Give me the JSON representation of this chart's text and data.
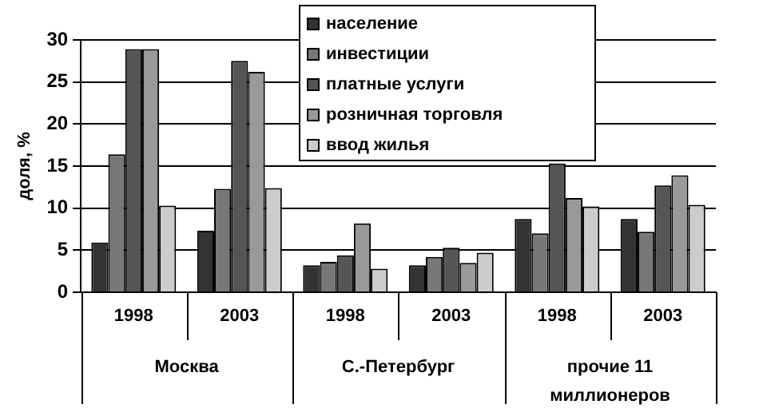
{
  "chart_data": {
    "type": "bar",
    "ylabel": "доля, %",
    "categories": [
      "1998",
      "2003",
      "1998",
      "2003",
      "1998",
      "2003"
    ],
    "series": [
      {
        "name": "население",
        "color": "#333333",
        "values": [
          5.9,
          7.3,
          3.2,
          3.2,
          8.7,
          8.7
        ]
      },
      {
        "name": "инвестиции",
        "color": "#777777",
        "values": [
          16.4,
          12.3,
          3.6,
          4.2,
          7.0,
          7.2
        ]
      },
      {
        "name": "платные услуги",
        "color": "#555555",
        "values": [
          28.9,
          27.5,
          4.4,
          5.3,
          15.3,
          12.7
        ]
      },
      {
        "name": "розничная торговля",
        "color": "#999999",
        "values": [
          28.9,
          26.2,
          8.2,
          3.5,
          11.2,
          13.9
        ]
      },
      {
        "name": "ввод жилья",
        "color": "#cccccc",
        "values": [
          10.3,
          12.4,
          2.8,
          4.7,
          10.2,
          10.4
        ]
      }
    ],
    "annotations": [
      "Москва",
      "С.-Петербург",
      "прочие 11\nмиллионеров"
    ],
    "ylim": [
      0,
      30
    ],
    "yticks": [
      0,
      5,
      10,
      15,
      20,
      25,
      30
    ],
    "grid": "y",
    "legend": "top"
  }
}
